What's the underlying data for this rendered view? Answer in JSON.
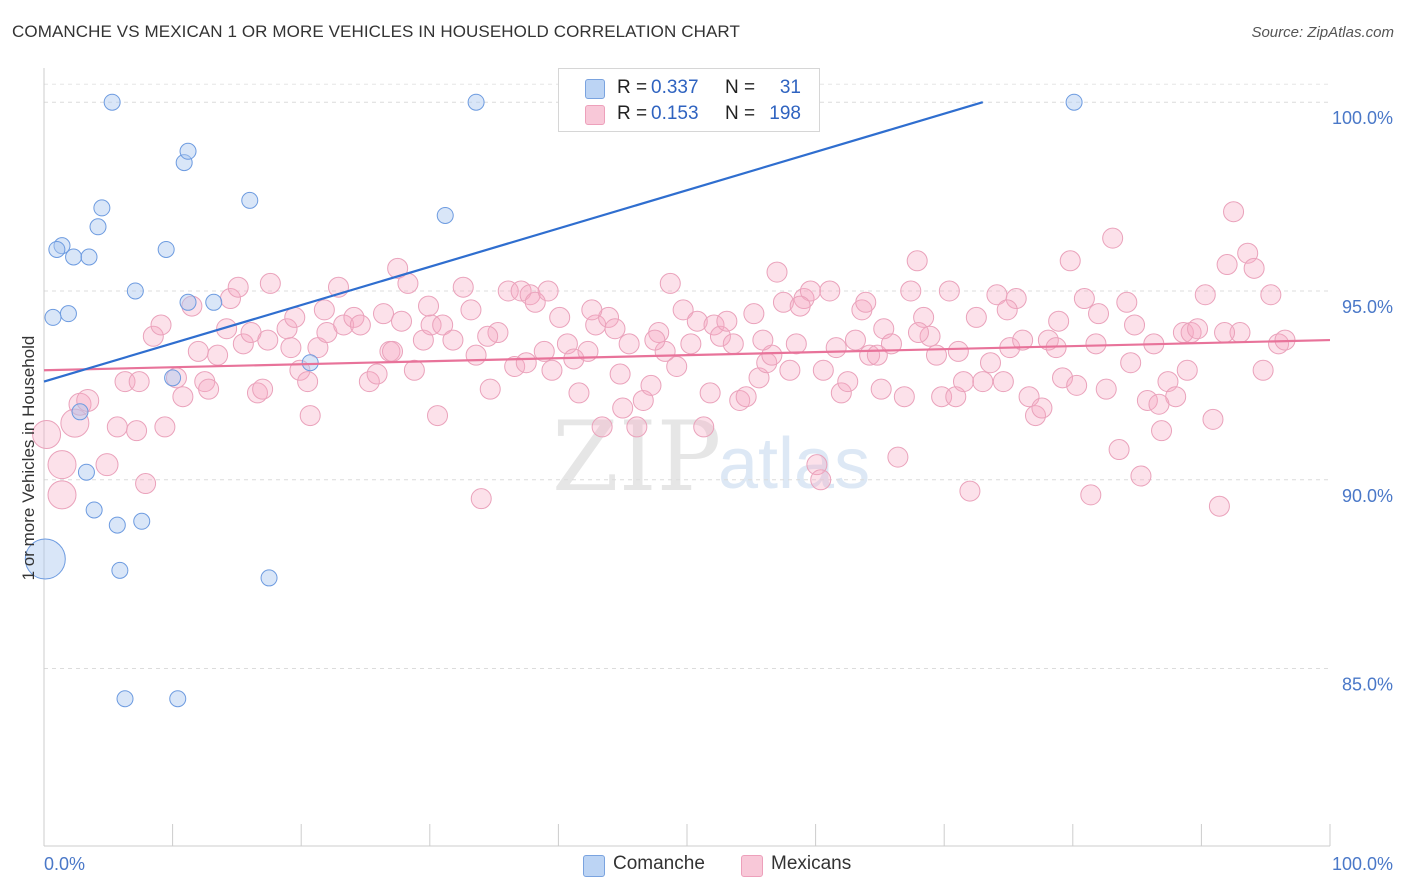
{
  "title": "COMANCHE VS MEXICAN 1 OR MORE VEHICLES IN HOUSEHOLD CORRELATION CHART",
  "source": "Source: ZipAtlas.com",
  "watermark": {
    "zip": "ZIP",
    "atlas": "atlas"
  },
  "legend": {
    "rows": [
      {
        "r_label": "R =",
        "r_value": "0.337",
        "n_label": "N =",
        "n_value": "31",
        "color": "#bcd4f4"
      },
      {
        "r_label": "R =",
        "r_value": "0.153",
        "n_label": "N =",
        "n_value": "198",
        "color": "#f8c8d8"
      }
    ]
  },
  "bottom_legend": {
    "comanche": "Comanche",
    "mexicans": "Mexicans"
  },
  "chart_data": {
    "type": "scatter",
    "title": "COMANCHE VS MEXICAN 1 OR MORE VEHICLES IN HOUSEHOLD CORRELATION CHART",
    "xlabel": "",
    "ylabel": "1 or more Vehicles in Household",
    "xlim": [
      0,
      100
    ],
    "ylim": [
      80.3,
      100.8
    ],
    "x_tick_labels": [
      "0.0%",
      "100.0%"
    ],
    "y_ticks": [
      85,
      90,
      95,
      100
    ],
    "y_tick_labels": [
      "85.0%",
      "90.0%",
      "95.0%",
      "100.0%"
    ],
    "grid": true,
    "colors": {
      "comanche": "#4a86d8",
      "mexicans": "#e8739a",
      "trend_comanche": "#2f6ecf",
      "trend_mexicans": "#e8739a"
    },
    "series": [
      {
        "name": "Comanche",
        "R": 0.337,
        "N": 31,
        "trend": {
          "x": [
            0,
            73
          ],
          "y": [
            92.6,
            100.0
          ]
        },
        "points": [
          [
            5.3,
            100.0
          ],
          [
            33.6,
            100.0
          ],
          [
            80.1,
            100.0
          ],
          [
            10.9,
            98.4
          ],
          [
            11.2,
            98.7
          ],
          [
            16.0,
            97.4
          ],
          [
            4.5,
            97.2
          ],
          [
            4.2,
            96.7
          ],
          [
            31.2,
            97.0
          ],
          [
            1.4,
            96.2
          ],
          [
            1.0,
            96.1
          ],
          [
            2.3,
            95.9
          ],
          [
            3.5,
            95.9
          ],
          [
            9.5,
            96.1
          ],
          [
            7.1,
            95.0
          ],
          [
            11.2,
            94.7
          ],
          [
            13.2,
            94.7
          ],
          [
            1.9,
            94.4
          ],
          [
            0.7,
            94.3
          ],
          [
            20.7,
            93.1
          ],
          [
            10.0,
            92.7
          ],
          [
            2.8,
            91.8
          ],
          [
            3.3,
            90.2
          ],
          [
            3.9,
            89.2
          ],
          [
            5.7,
            88.8
          ],
          [
            0.1,
            87.9
          ],
          [
            5.9,
            87.6
          ],
          [
            17.5,
            87.4
          ],
          [
            6.3,
            84.2
          ],
          [
            10.4,
            84.2
          ],
          [
            7.6,
            88.9
          ]
        ],
        "sizes": [
          1,
          1,
          1,
          1,
          1,
          1,
          1,
          1,
          1,
          1,
          1,
          1,
          1,
          1,
          1,
          1,
          1,
          1,
          1,
          1,
          1,
          1,
          1,
          1,
          1,
          3,
          1,
          1,
          1,
          1,
          1
        ]
      },
      {
        "name": "Mexicans",
        "R": 0.153,
        "N": 198,
        "trend": {
          "x": [
            0,
            100
          ],
          "y": [
            92.9,
            93.7
          ]
        },
        "points": [
          [
            0.2,
            91.2
          ],
          [
            1.4,
            90.4
          ],
          [
            1.4,
            89.6
          ],
          [
            2.4,
            91.5
          ],
          [
            2.8,
            92.0
          ],
          [
            3.4,
            92.1
          ],
          [
            4.9,
            90.4
          ],
          [
            5.7,
            91.4
          ],
          [
            7.2,
            91.3
          ],
          [
            7.9,
            89.9
          ],
          [
            6.3,
            92.6
          ],
          [
            7.4,
            92.6
          ],
          [
            8.5,
            93.8
          ],
          [
            9.1,
            94.1
          ],
          [
            9.4,
            91.4
          ],
          [
            10.3,
            92.7
          ],
          [
            10.8,
            92.2
          ],
          [
            11.5,
            94.6
          ],
          [
            12.0,
            93.4
          ],
          [
            12.5,
            92.6
          ],
          [
            12.8,
            92.4
          ],
          [
            13.5,
            93.3
          ],
          [
            14.2,
            94.0
          ],
          [
            14.5,
            94.8
          ],
          [
            15.1,
            95.1
          ],
          [
            15.5,
            93.6
          ],
          [
            16.1,
            93.9
          ],
          [
            16.6,
            92.3
          ],
          [
            17.0,
            92.4
          ],
          [
            17.4,
            93.7
          ],
          [
            17.6,
            95.2
          ],
          [
            18.9,
            94.0
          ],
          [
            19.2,
            93.5
          ],
          [
            19.9,
            92.9
          ],
          [
            20.5,
            92.6
          ],
          [
            20.7,
            91.7
          ],
          [
            21.3,
            93.5
          ],
          [
            22.0,
            93.9
          ],
          [
            22.9,
            95.1
          ],
          [
            23.3,
            94.1
          ],
          [
            24.1,
            94.3
          ],
          [
            24.6,
            94.1
          ],
          [
            25.3,
            92.6
          ],
          [
            25.9,
            92.8
          ],
          [
            26.4,
            94.4
          ],
          [
            26.9,
            93.4
          ],
          [
            27.5,
            95.6
          ],
          [
            27.8,
            94.2
          ],
          [
            28.3,
            95.2
          ],
          [
            28.8,
            92.9
          ],
          [
            29.5,
            93.7
          ],
          [
            30.1,
            94.1
          ],
          [
            30.6,
            91.7
          ],
          [
            31.0,
            94.1
          ],
          [
            31.8,
            93.7
          ],
          [
            32.6,
            95.1
          ],
          [
            33.2,
            94.5
          ],
          [
            33.6,
            93.3
          ],
          [
            34.0,
            89.5
          ],
          [
            34.7,
            92.4
          ],
          [
            35.3,
            93.9
          ],
          [
            36.1,
            95.0
          ],
          [
            36.6,
            93.0
          ],
          [
            37.1,
            95.0
          ],
          [
            37.8,
            94.9
          ],
          [
            38.2,
            94.7
          ],
          [
            38.9,
            93.4
          ],
          [
            39.5,
            92.9
          ],
          [
            40.1,
            94.3
          ],
          [
            40.7,
            93.6
          ],
          [
            41.2,
            93.2
          ],
          [
            41.6,
            92.3
          ],
          [
            42.3,
            93.4
          ],
          [
            42.9,
            94.1
          ],
          [
            43.4,
            91.4
          ],
          [
            43.9,
            94.3
          ],
          [
            44.4,
            94.0
          ],
          [
            44.8,
            92.8
          ],
          [
            45.5,
            93.6
          ],
          [
            46.1,
            91.4
          ],
          [
            46.6,
            92.1
          ],
          [
            47.2,
            92.5
          ],
          [
            47.8,
            93.9
          ],
          [
            48.3,
            93.4
          ],
          [
            48.7,
            95.2
          ],
          [
            49.2,
            93.0
          ],
          [
            49.7,
            94.5
          ],
          [
            50.3,
            93.6
          ],
          [
            50.8,
            94.2
          ],
          [
            51.3,
            91.4
          ],
          [
            52.1,
            94.1
          ],
          [
            52.6,
            93.8
          ],
          [
            53.1,
            94.2
          ],
          [
            53.6,
            93.6
          ],
          [
            54.1,
            92.1
          ],
          [
            54.6,
            92.2
          ],
          [
            55.2,
            94.4
          ],
          [
            55.6,
            92.7
          ],
          [
            56.2,
            93.1
          ],
          [
            56.6,
            93.3
          ],
          [
            57.0,
            95.5
          ],
          [
            57.5,
            94.7
          ],
          [
            58.0,
            92.9
          ],
          [
            58.5,
            93.6
          ],
          [
            59.1,
            94.8
          ],
          [
            59.6,
            95.0
          ],
          [
            60.1,
            90.4
          ],
          [
            60.6,
            92.9
          ],
          [
            61.1,
            95.0
          ],
          [
            61.6,
            93.5
          ],
          [
            62.0,
            92.3
          ],
          [
            62.5,
            92.6
          ],
          [
            63.1,
            93.7
          ],
          [
            63.6,
            94.5
          ],
          [
            64.2,
            93.3
          ],
          [
            64.8,
            93.3
          ],
          [
            65.3,
            94.0
          ],
          [
            65.9,
            93.6
          ],
          [
            66.4,
            90.6
          ],
          [
            66.9,
            92.2
          ],
          [
            67.4,
            95.0
          ],
          [
            67.9,
            95.8
          ],
          [
            68.4,
            94.3
          ],
          [
            68.9,
            93.8
          ],
          [
            69.4,
            93.3
          ],
          [
            69.8,
            92.2
          ],
          [
            70.4,
            95.0
          ],
          [
            70.9,
            92.2
          ],
          [
            71.5,
            92.6
          ],
          [
            72.0,
            89.7
          ],
          [
            72.5,
            94.3
          ],
          [
            73.0,
            92.6
          ],
          [
            73.6,
            93.1
          ],
          [
            74.1,
            94.9
          ],
          [
            74.6,
            92.6
          ],
          [
            75.1,
            93.5
          ],
          [
            75.6,
            94.8
          ],
          [
            76.1,
            93.7
          ],
          [
            76.6,
            92.2
          ],
          [
            77.1,
            91.7
          ],
          [
            77.6,
            91.9
          ],
          [
            78.1,
            93.7
          ],
          [
            78.7,
            93.5
          ],
          [
            79.2,
            92.7
          ],
          [
            79.8,
            95.8
          ],
          [
            80.3,
            92.5
          ],
          [
            80.9,
            94.8
          ],
          [
            81.4,
            89.6
          ],
          [
            82.0,
            94.4
          ],
          [
            82.6,
            92.4
          ],
          [
            83.1,
            96.4
          ],
          [
            83.6,
            90.8
          ],
          [
            84.2,
            94.7
          ],
          [
            84.8,
            94.1
          ],
          [
            85.3,
            90.1
          ],
          [
            85.8,
            92.1
          ],
          [
            86.3,
            93.6
          ],
          [
            86.9,
            91.3
          ],
          [
            87.4,
            92.6
          ],
          [
            88.0,
            92.2
          ],
          [
            88.6,
            93.9
          ],
          [
            89.2,
            93.9
          ],
          [
            89.7,
            94.0
          ],
          [
            90.3,
            94.9
          ],
          [
            90.9,
            91.6
          ],
          [
            91.4,
            89.3
          ],
          [
            92.0,
            95.7
          ],
          [
            92.5,
            97.1
          ],
          [
            93.0,
            93.9
          ],
          [
            93.6,
            96.0
          ],
          [
            94.1,
            95.6
          ],
          [
            94.8,
            92.9
          ],
          [
            95.4,
            94.9
          ],
          [
            96.0,
            93.6
          ],
          [
            96.5,
            93.7
          ],
          [
            27.1,
            93.4
          ],
          [
            37.5,
            93.1
          ],
          [
            45.0,
            91.9
          ],
          [
            51.8,
            92.3
          ],
          [
            58.8,
            94.6
          ],
          [
            60.4,
            90.0
          ],
          [
            65.1,
            92.4
          ],
          [
            71.1,
            93.4
          ],
          [
            78.9,
            94.2
          ],
          [
            86.7,
            92.0
          ],
          [
            91.8,
            93.9
          ],
          [
            21.8,
            94.5
          ],
          [
            34.5,
            93.8
          ],
          [
            42.6,
            94.5
          ],
          [
            55.9,
            93.7
          ],
          [
            63.9,
            94.7
          ],
          [
            74.9,
            94.5
          ],
          [
            81.8,
            93.6
          ],
          [
            88.9,
            92.9
          ],
          [
            19.5,
            94.3
          ],
          [
            29.9,
            94.6
          ],
          [
            39.2,
            95.0
          ],
          [
            47.5,
            93.7
          ],
          [
            68.0,
            93.9
          ],
          [
            84.5,
            93.1
          ]
        ]
      }
    ]
  }
}
